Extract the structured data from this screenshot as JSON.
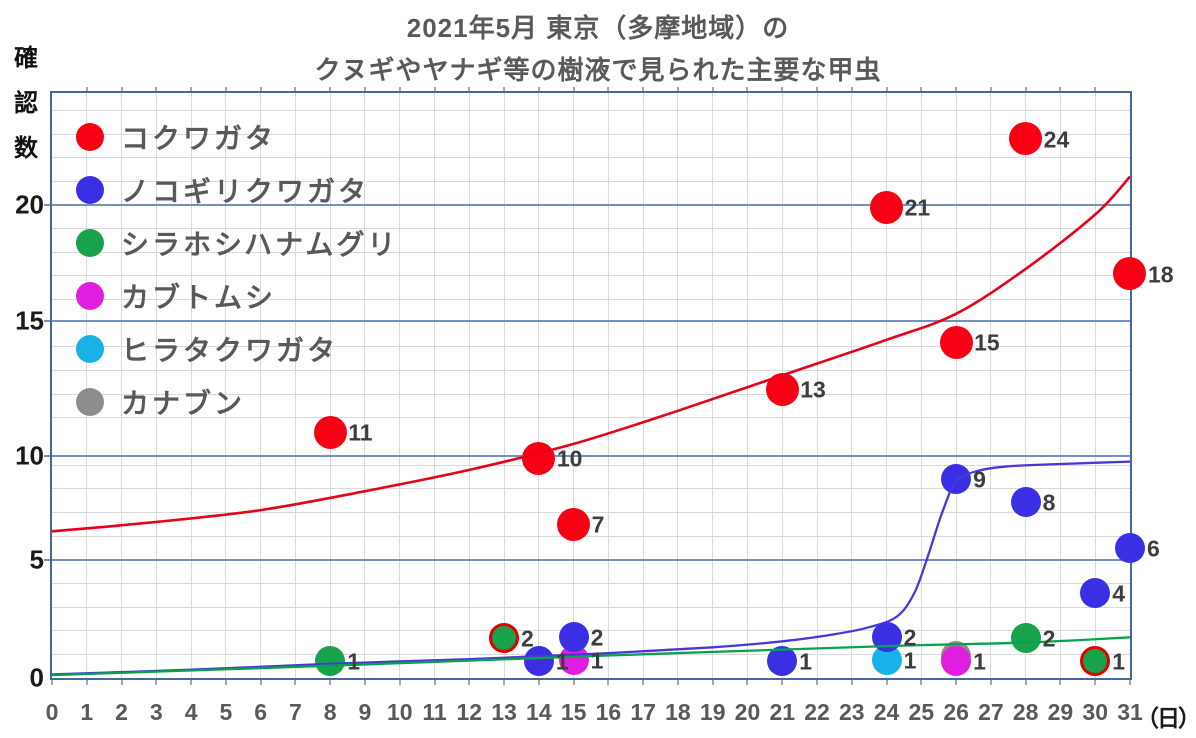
{
  "title": {
    "line1": "2021年5月 東京（多摩地域）の",
    "line2": "クヌギやヤナギ等の樹液で見られた主要な甲虫"
  },
  "axes": {
    "y_axis_title": "確認数",
    "x_unit_label": "（日）",
    "x_ticks": [
      0,
      1,
      2,
      3,
      4,
      5,
      6,
      7,
      8,
      9,
      10,
      11,
      12,
      13,
      14,
      15,
      16,
      17,
      18,
      19,
      20,
      21,
      22,
      23,
      24,
      25,
      26,
      27,
      28,
      29,
      30,
      31
    ],
    "y_ticks": [
      0,
      5,
      10,
      15,
      20
    ]
  },
  "legend": [
    {
      "label": "コクワガタ",
      "color": "#f80013"
    },
    {
      "label": "ノコギリクワガタ",
      "color": "#3a2fe3"
    },
    {
      "label": "シラホシハナムグリ",
      "color": "#17a24b"
    },
    {
      "label": "カブトムシ",
      "color": "#e01ee0"
    },
    {
      "label": "ヒラタクワガタ",
      "color": "#18b2e8"
    },
    {
      "label": "カナブン",
      "color": "#8d8d8d"
    }
  ],
  "chart_data": {
    "type": "scatter",
    "title": "2021年5月 東京（多摩地域）の クヌギやヤナギ等の樹液で見られた主要な甲虫",
    "xlabel": "日",
    "ylabel": "確認数",
    "xlim": [
      0,
      31
    ],
    "ylim": [
      0,
      24.7
    ],
    "grid": true,
    "legend_position": "top-left",
    "series": [
      {
        "name": "カナブン",
        "color": "#8d8d8d",
        "points": [
          {
            "day": 26,
            "y_plot": 0.95
          }
        ]
      },
      {
        "name": "ヒラタクワガタ",
        "color": "#18b2e8",
        "points": [
          {
            "day": 24,
            "count": 1,
            "y_plot": 0.75
          }
        ]
      },
      {
        "name": "カブトムシ",
        "color": "#e01ee0",
        "points": [
          {
            "day": 15,
            "count": 1,
            "y_plot": 0.75
          },
          {
            "day": 26,
            "count": 1,
            "y_plot": 0.7
          }
        ]
      },
      {
        "name": "シラホシハナムグリ",
        "color": "#17a24b",
        "points": [
          {
            "day": 8,
            "count": 1,
            "y_plot": 0.7
          },
          {
            "day": 13,
            "count": 2,
            "y_plot": 1.7,
            "outline": "#e00000"
          },
          {
            "day": 28,
            "count": 2,
            "y_plot": 1.7
          },
          {
            "day": 30,
            "count": 1,
            "y_plot": 0.7,
            "outline": "#e00000"
          }
        ]
      },
      {
        "name": "ノコギリクワガタ",
        "color": "#3a2fe3",
        "points": [
          {
            "day": 14,
            "count": 1,
            "y_plot": 0.7
          },
          {
            "day": 15,
            "count": 2,
            "y_plot": 1.75
          },
          {
            "day": 21,
            "count": 1,
            "y_plot": 0.7
          },
          {
            "day": 24,
            "count": 2,
            "y_plot": 1.75
          },
          {
            "day": 26,
            "count": 9,
            "y_plot": 8.4
          },
          {
            "day": 28,
            "count": 8,
            "y_plot": 7.45
          },
          {
            "day": 30,
            "count": 4,
            "y_plot": 3.6
          },
          {
            "day": 31,
            "count": 6,
            "y_plot": 5.5
          }
        ]
      },
      {
        "name": "コクワガタ",
        "color": "#f80013",
        "points": [
          {
            "day": 8,
            "count": 11,
            "y_plot": 10.4
          },
          {
            "day": 14,
            "count": 10,
            "y_plot": 9.3
          },
          {
            "day": 15,
            "count": 7,
            "y_plot": 6.5
          },
          {
            "day": 21,
            "count": 13,
            "y_plot": 12.2
          },
          {
            "day": 24,
            "count": 21,
            "y_plot": 19.9
          },
          {
            "day": 26,
            "count": 15,
            "y_plot": 14.2
          },
          {
            "day": 28,
            "count": 24,
            "y_plot": 22.8
          },
          {
            "day": 31,
            "count": 18,
            "y_plot": 17.1
          }
        ]
      }
    ],
    "trend_lines": [
      {
        "series": "コクワガタ",
        "color": "#e60019",
        "width": 2.6,
        "points": [
          [
            0,
            6.2
          ],
          [
            3,
            6.6
          ],
          [
            6,
            7.1
          ],
          [
            9,
            7.9
          ],
          [
            12,
            8.8
          ],
          [
            15,
            9.9
          ],
          [
            18,
            11.3
          ],
          [
            21,
            12.8
          ],
          [
            24,
            14.3
          ],
          [
            26,
            15.4
          ],
          [
            28,
            17.3
          ],
          [
            30,
            19.6
          ],
          [
            31,
            21.2
          ]
        ]
      },
      {
        "series": "ノコギリクワガタ",
        "color": "#4738d6",
        "width": 2.3,
        "points": [
          [
            0,
            0.15
          ],
          [
            4,
            0.35
          ],
          [
            8,
            0.6
          ],
          [
            12,
            0.8
          ],
          [
            16,
            1.05
          ],
          [
            19,
            1.3
          ],
          [
            21,
            1.55
          ],
          [
            22.5,
            1.85
          ],
          [
            23.5,
            2.15
          ],
          [
            24.3,
            2.6
          ],
          [
            24.8,
            3.6
          ],
          [
            25.2,
            5.2
          ],
          [
            25.6,
            7.0
          ],
          [
            26,
            8.3
          ],
          [
            26.6,
            8.75
          ],
          [
            27.5,
            8.95
          ],
          [
            29,
            9.05
          ],
          [
            31,
            9.15
          ]
        ]
      },
      {
        "series": "シラホシハナムグリ",
        "color": "#0aa050",
        "width": 2.3,
        "points": [
          [
            0,
            0.12
          ],
          [
            8,
            0.52
          ],
          [
            16,
            0.95
          ],
          [
            24,
            1.35
          ],
          [
            28,
            1.5
          ],
          [
            31,
            1.72
          ]
        ]
      }
    ]
  }
}
